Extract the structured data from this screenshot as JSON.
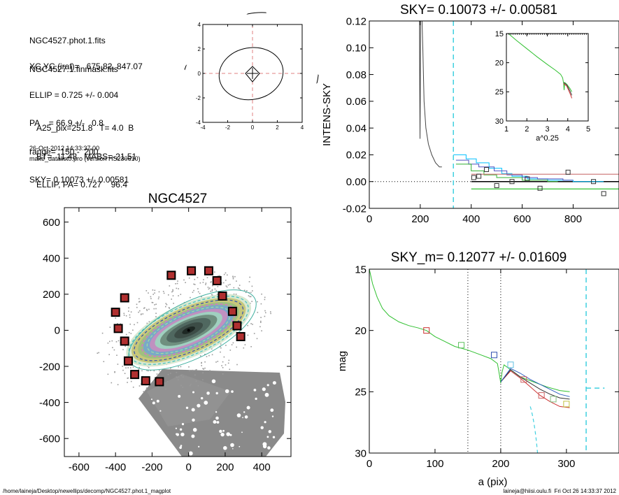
{
  "info_block": {
    "lines1": [
      "NGC4527.phot.1.fits",
      "NGC4527.1.finmask.fits"
    ],
    "lines2": [
      "XC,YC (iraf)=   675.82, 847.07",
      "ELLIP = 0.725 +/- 0.004",
      "PA    = 66.9 +/-   0.8",
      "range=  150.-  200.",
      "SKY= 0.10073 +/- 0.00581"
    ],
    "lines3": [
      "A25_pix=251.8   T= 4.0  B",
      "BT=  11.48   MABS=-21.51",
      "ELLIP, PA= 0.727    96.4"
    ],
    "date": "26-Oct-2012 14:33:37.00",
    "program": "make_datalist0.pro (version HS230610)"
  },
  "footer": {
    "path": "/home/laineja/Desktop/newellips/decomp/NGC4527.phot.1_magplot",
    "stamp": "laineja@hiisi.oulu.fi  Fri Oct 26 14:33:37 2012"
  },
  "chart_data": [
    {
      "type": "line",
      "id": "contour-inset",
      "xlim": [
        -4,
        4
      ],
      "ylim": [
        -4,
        4
      ],
      "xticks": [
        "-4",
        "-2",
        "0",
        "2",
        "4"
      ],
      "yticks": [
        "-4",
        "-2",
        "0",
        "2",
        "4"
      ]
    },
    {
      "type": "line",
      "id": "sky-profile",
      "title": "SKY= 0.10073 +/- 0.00581",
      "ylabel": "INTENS-SKY",
      "xlim": [
        0,
        980
      ],
      "ylim": [
        -0.02,
        0.12
      ],
      "xticks": [
        "0",
        "200",
        "400",
        "600",
        "800"
      ],
      "yticks": [
        "-0.02",
        "0.00",
        "0.02",
        "0.04",
        "0.06",
        "0.08",
        "0.10",
        "0.12"
      ],
      "sky_marker_x": 330,
      "series": [
        {
          "color": "#444444",
          "points": [
            [
              197,
              0.12
            ],
            [
              198,
              0.07
            ],
            [
              199,
              0.032
            ],
            [
              200,
              0.06
            ],
            [
              201,
              0.12
            ],
            [
              207,
              0.12
            ],
            [
              210,
              0.1
            ],
            [
              215,
              0.06
            ],
            [
              222,
              0.04
            ],
            [
              232,
              0.028
            ],
            [
              245,
              0.02
            ],
            [
              260,
              0.014
            ],
            [
              275,
              0.011
            ],
            [
              285,
              0.011
            ]
          ]
        },
        {
          "color": "#00c0ff",
          "steps": [
            [
              330,
              0.02
            ],
            [
              380,
              0.017
            ],
            [
              420,
              0.014
            ],
            [
              470,
              0.01
            ],
            [
              520,
              0.006
            ],
            [
              560,
              0.004
            ],
            [
              620,
              0.002
            ],
            [
              700,
              0.001
            ],
            [
              800,
              0.0
            ],
            [
              880,
              0.0
            ]
          ]
        },
        {
          "color": "#5050c0",
          "steps": [
            [
              340,
              0.016
            ],
            [
              390,
              0.013
            ],
            [
              430,
              0.011
            ],
            [
              490,
              0.008
            ],
            [
              540,
              0.005
            ],
            [
              600,
              0.003
            ],
            [
              660,
              0.002
            ],
            [
              760,
              0.001
            ]
          ]
        },
        {
          "color": "#30b030",
          "steps": [
            [
              340,
              0.013
            ],
            [
              400,
              0.008
            ],
            [
              450,
              0.005
            ],
            [
              500,
              0.003
            ],
            [
              600,
              0.001
            ],
            [
              700,
              0.0
            ]
          ]
        },
        {
          "color": "#cc7070",
          "hline": 0.0055,
          "from": 400,
          "to": 980
        },
        {
          "color": "#30c030",
          "hline": -0.0055,
          "from": 400,
          "to": 980
        }
      ],
      "squares": [
        [
          410,
          0.003
        ],
        [
          430,
          0.004
        ],
        [
          460,
          0.009
        ],
        [
          500,
          -0.003
        ],
        [
          560,
          0.0
        ],
        [
          620,
          0.002
        ],
        [
          670,
          -0.005
        ],
        [
          780,
          0.007
        ],
        [
          880,
          0.0
        ],
        [
          920,
          -0.009
        ]
      ],
      "inset": {
        "xlabel": "a^0.25",
        "xlim": [
          1,
          5
        ],
        "ylim": [
          15,
          30
        ],
        "xticks": [
          "1",
          "2",
          "3",
          "4",
          "5"
        ],
        "yticks": [
          "15",
          "20",
          "25",
          "30"
        ],
        "series": [
          {
            "color": "#30c030",
            "points": [
              [
                1.1,
                15.0
              ],
              [
                1.5,
                16.2
              ],
              [
                2.0,
                17.6
              ],
              [
                2.5,
                19.0
              ],
              [
                3.0,
                20.3
              ],
              [
                3.4,
                21.3
              ],
              [
                3.65,
                22.0
              ],
              [
                3.75,
                22.6
              ],
              [
                3.8,
                23.6
              ],
              [
                3.82,
                24.7
              ],
              [
                3.85,
                23.4
              ],
              [
                3.95,
                23.7
              ],
              [
                4.1,
                24.4
              ],
              [
                4.2,
                25.0
              ]
            ]
          },
          {
            "color": "#cc3030",
            "points": [
              [
                3.8,
                23.6
              ],
              [
                3.95,
                24.0
              ],
              [
                4.1,
                25.2
              ],
              [
                4.2,
                26.1
              ]
            ]
          },
          {
            "color": "#404040",
            "points": [
              [
                3.8,
                23.4
              ],
              [
                3.95,
                23.8
              ],
              [
                4.1,
                24.8
              ],
              [
                4.2,
                25.6
              ]
            ]
          }
        ]
      }
    },
    {
      "type": "scatter",
      "id": "galaxy-image",
      "title": "NGC4527",
      "xlim": [
        -680,
        560
      ],
      "ylim": [
        -700,
        680
      ],
      "xticks": [
        "-600",
        "-400",
        "-200",
        "0",
        "200",
        "400"
      ],
      "yticks": [
        "-600",
        "-400",
        "-200",
        "0",
        "200",
        "400",
        "600"
      ],
      "ellipse": {
        "pa": 66.9,
        "ellip": 0.725
      },
      "mask_squares": [
        [
          -95,
          305
        ],
        [
          15,
          330
        ],
        [
          110,
          330
        ],
        [
          155,
          275
        ],
        [
          -350,
          180
        ],
        [
          185,
          190
        ],
        [
          -400,
          100
        ],
        [
          240,
          105
        ],
        [
          -385,
          10
        ],
        [
          265,
          25
        ],
        [
          -350,
          -60
        ],
        [
          285,
          -35
        ],
        [
          -330,
          -170
        ],
        [
          -295,
          -245
        ],
        [
          -235,
          -280
        ],
        [
          -160,
          -285
        ]
      ]
    },
    {
      "type": "line",
      "id": "magnitude-profile",
      "title": "SKY_m=  0.12077 +/- 0.01609",
      "xlabel": "a (pix)",
      "ylabel": "mag",
      "xlim": [
        0,
        380
      ],
      "ylim": [
        15,
        30
      ],
      "yaxis_inverted": true,
      "xticks": [
        "0",
        "100",
        "200",
        "300"
      ],
      "yticks": [
        "15",
        "20",
        "25",
        "30"
      ],
      "dotted_x": [
        150,
        200
      ],
      "cyan_dashed_x": 330,
      "cyan_dashed_mag": 24.7,
      "series": [
        {
          "color": "#30c030",
          "points": [
            [
              0,
              15.0
            ],
            [
              5,
              16.2
            ],
            [
              12,
              17.3
            ],
            [
              20,
              18.2
            ],
            [
              30,
              18.8
            ],
            [
              45,
              19.3
            ],
            [
              60,
              19.6
            ],
            [
              75,
              19.8
            ],
            [
              87,
              20.0
            ],
            [
              100,
              20.5
            ],
            [
              115,
              20.9
            ],
            [
              130,
              21.3
            ],
            [
              150,
              21.6
            ],
            [
              170,
              22.0
            ],
            [
              185,
              22.3
            ],
            [
              195,
              22.7
            ],
            [
              198,
              23.6
            ],
            [
              200,
              24.3
            ],
            [
              202,
              23.4
            ],
            [
              205,
              22.8
            ],
            [
              215,
              23.2
            ],
            [
              230,
              23.8
            ],
            [
              250,
              24.2
            ],
            [
              270,
              24.6
            ],
            [
              290,
              24.9
            ],
            [
              305,
              25.0
            ]
          ]
        },
        {
          "color": "#cc3030",
          "points": [
            [
              200,
              24.2
            ],
            [
              215,
              23.3
            ],
            [
              230,
              23.9
            ],
            [
              245,
              24.6
            ],
            [
              260,
              25.3
            ],
            [
              275,
              25.8
            ],
            [
              290,
              26.2
            ],
            [
              305,
              26.3
            ]
          ]
        },
        {
          "color": "#303030",
          "points": [
            [
              200,
              24.2
            ],
            [
              215,
              23.2
            ],
            [
              230,
              23.8
            ],
            [
              245,
              24.3
            ],
            [
              260,
              24.8
            ],
            [
              275,
              25.2
            ],
            [
              290,
              25.5
            ],
            [
              305,
              25.6
            ]
          ]
        },
        {
          "color": "#3060c0",
          "points": [
            [
              200,
              24.2
            ],
            [
              215,
              23.1
            ],
            [
              230,
              23.5
            ],
            [
              245,
              24.0
            ],
            [
              260,
              24.4
            ],
            [
              275,
              24.8
            ],
            [
              290,
              25.2
            ],
            [
              305,
              25.4
            ]
          ]
        }
      ],
      "squares": [
        {
          "x": 87,
          "y": 20.0,
          "color": "#cc3030"
        },
        {
          "x": 140,
          "y": 21.2,
          "color": "#60c060"
        },
        {
          "x": 190,
          "y": 22.0,
          "color": "#3050b0"
        },
        {
          "x": 215,
          "y": 22.8,
          "color": "#60c0e0"
        },
        {
          "x": 235,
          "y": 24.0,
          "color": "#cc6060"
        },
        {
          "x": 262,
          "y": 25.3,
          "color": "#cc6060"
        },
        {
          "x": 280,
          "y": 25.6,
          "color": "#80c080"
        },
        {
          "x": 300,
          "y": 26.0,
          "color": "#c0c040"
        }
      ]
    }
  ]
}
